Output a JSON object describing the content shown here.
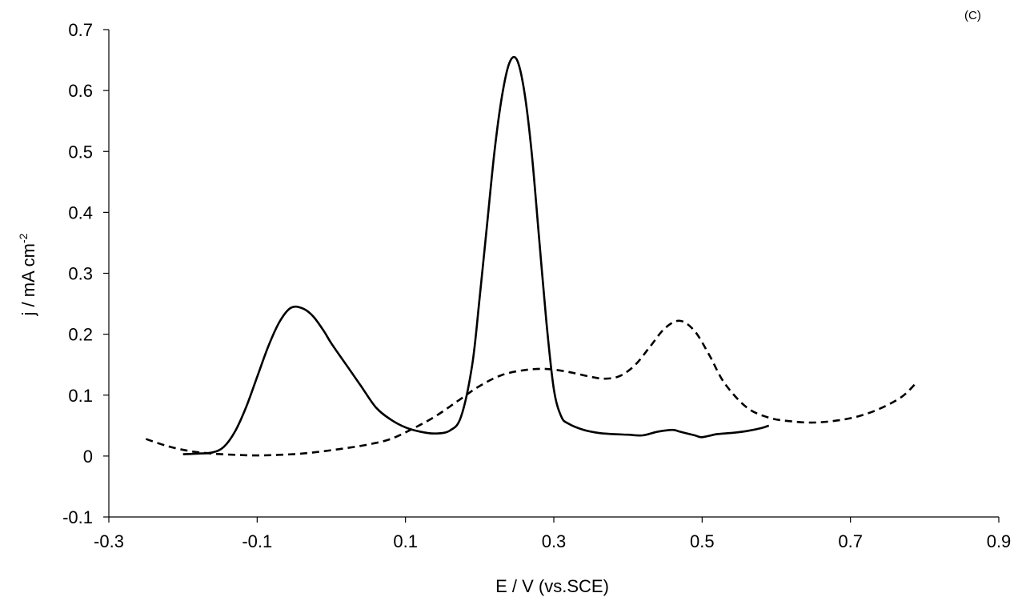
{
  "chart_data": {
    "type": "line",
    "panel_label": "(C)",
    "xlabel": "E / V (vs.SCE)",
    "ylabel": {
      "main": "j / mA cm",
      "superscript": "-2"
    },
    "xlim": [
      -0.3,
      0.9
    ],
    "ylim": [
      -0.1,
      0.7
    ],
    "xticks": [
      -0.3,
      -0.1,
      0.1,
      0.3,
      0.5,
      0.7,
      0.9
    ],
    "yticks": [
      -0.1,
      0,
      0.1,
      0.2,
      0.3,
      0.4,
      0.5,
      0.6,
      0.7
    ],
    "xtick_labels": [
      "-0.3",
      "-0.1",
      "0.1",
      "0.3",
      "0.5",
      "0.7",
      "0.9"
    ],
    "ytick_labels": [
      "-0.1",
      "0",
      "0.1",
      "0.2",
      "0.3",
      "0.4",
      "0.5",
      "0.6",
      "0.7"
    ],
    "grid": false,
    "legend": "none",
    "series": [
      {
        "style": "solid",
        "color": "#000000",
        "points": [
          [
            -0.2,
            0.003
          ],
          [
            -0.18,
            0.004
          ],
          [
            -0.16,
            0.006
          ],
          [
            -0.145,
            0.015
          ],
          [
            -0.13,
            0.04
          ],
          [
            -0.115,
            0.08
          ],
          [
            -0.1,
            0.13
          ],
          [
            -0.085,
            0.18
          ],
          [
            -0.07,
            0.22
          ],
          [
            -0.055,
            0.243
          ],
          [
            -0.04,
            0.243
          ],
          [
            -0.025,
            0.23
          ],
          [
            -0.01,
            0.205
          ],
          [
            0.0,
            0.185
          ],
          [
            0.02,
            0.15
          ],
          [
            0.04,
            0.115
          ],
          [
            0.06,
            0.08
          ],
          [
            0.08,
            0.06
          ],
          [
            0.1,
            0.047
          ],
          [
            0.12,
            0.04
          ],
          [
            0.14,
            0.037
          ],
          [
            0.16,
            0.042
          ],
          [
            0.175,
            0.065
          ],
          [
            0.19,
            0.15
          ],
          [
            0.2,
            0.26
          ],
          [
            0.21,
            0.38
          ],
          [
            0.22,
            0.5
          ],
          [
            0.23,
            0.59
          ],
          [
            0.24,
            0.645
          ],
          [
            0.25,
            0.651
          ],
          [
            0.26,
            0.6
          ],
          [
            0.27,
            0.5
          ],
          [
            0.28,
            0.36
          ],
          [
            0.29,
            0.22
          ],
          [
            0.3,
            0.11
          ],
          [
            0.31,
            0.065
          ],
          [
            0.32,
            0.053
          ],
          [
            0.34,
            0.043
          ],
          [
            0.36,
            0.038
          ],
          [
            0.38,
            0.036
          ],
          [
            0.4,
            0.035
          ],
          [
            0.42,
            0.034
          ],
          [
            0.44,
            0.04
          ],
          [
            0.46,
            0.043
          ],
          [
            0.47,
            0.04
          ],
          [
            0.49,
            0.034
          ],
          [
            0.5,
            0.031
          ],
          [
            0.52,
            0.036
          ],
          [
            0.54,
            0.038
          ],
          [
            0.56,
            0.041
          ],
          [
            0.58,
            0.046
          ],
          [
            0.59,
            0.05
          ]
        ]
      },
      {
        "style": "dashed",
        "color": "#000000",
        "points": [
          [
            -0.25,
            0.028
          ],
          [
            -0.22,
            0.016
          ],
          [
            -0.19,
            0.008
          ],
          [
            -0.16,
            0.004
          ],
          [
            -0.13,
            0.002
          ],
          [
            -0.1,
            0.001
          ],
          [
            -0.07,
            0.002
          ],
          [
            -0.04,
            0.004
          ],
          [
            -0.01,
            0.008
          ],
          [
            0.02,
            0.013
          ],
          [
            0.05,
            0.019
          ],
          [
            0.08,
            0.028
          ],
          [
            0.11,
            0.045
          ],
          [
            0.14,
            0.065
          ],
          [
            0.17,
            0.09
          ],
          [
            0.2,
            0.115
          ],
          [
            0.23,
            0.133
          ],
          [
            0.26,
            0.141
          ],
          [
            0.29,
            0.143
          ],
          [
            0.32,
            0.138
          ],
          [
            0.35,
            0.13
          ],
          [
            0.37,
            0.127
          ],
          [
            0.39,
            0.132
          ],
          [
            0.41,
            0.15
          ],
          [
            0.43,
            0.18
          ],
          [
            0.45,
            0.21
          ],
          [
            0.47,
            0.222
          ],
          [
            0.49,
            0.205
          ],
          [
            0.51,
            0.165
          ],
          [
            0.53,
            0.12
          ],
          [
            0.56,
            0.08
          ],
          [
            0.59,
            0.063
          ],
          [
            0.62,
            0.057
          ],
          [
            0.65,
            0.055
          ],
          [
            0.68,
            0.058
          ],
          [
            0.71,
            0.065
          ],
          [
            0.74,
            0.078
          ],
          [
            0.77,
            0.098
          ],
          [
            0.79,
            0.122
          ]
        ]
      }
    ]
  }
}
